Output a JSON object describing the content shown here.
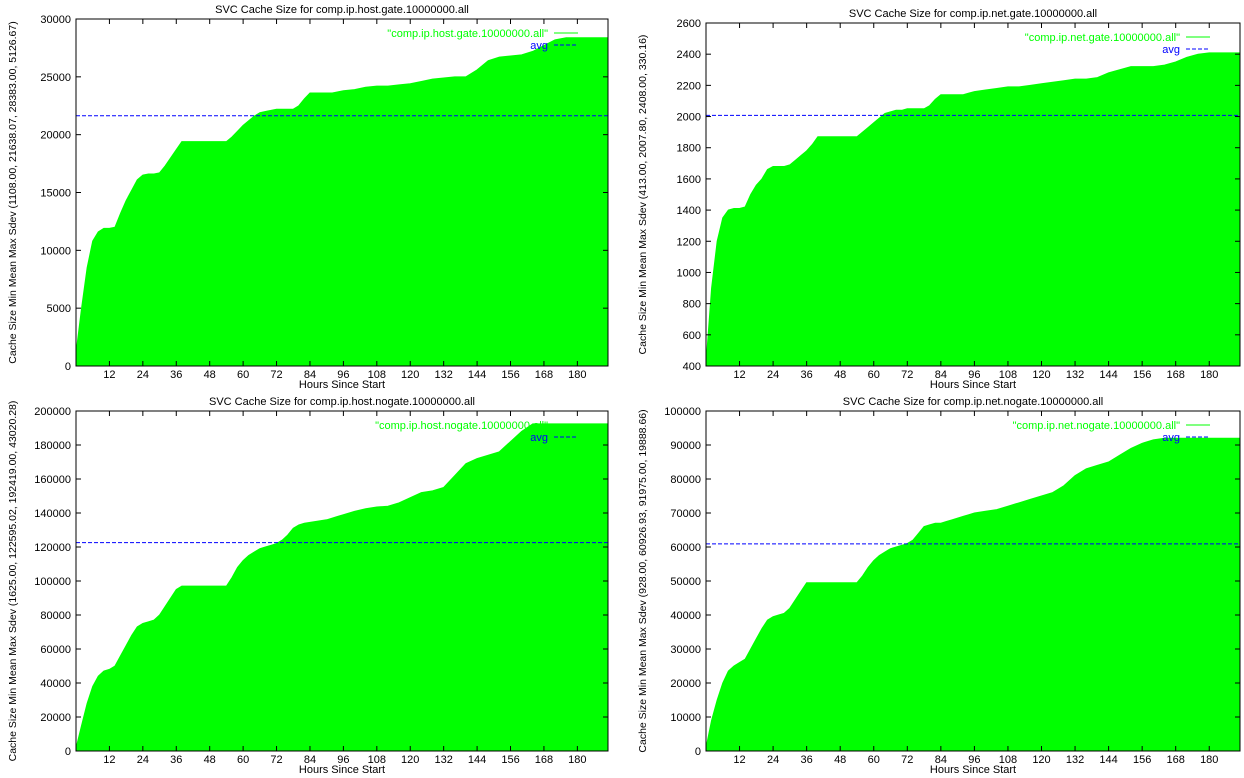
{
  "chart_data": [
    {
      "type": "area",
      "title": "SVC Cache Size for comp.ip.host.gate.10000000.all",
      "xlabel": "Hours Since Start",
      "ylabel": "Cache Size Min Mean Max Sdev (1108.00, 21638.07, 28383.00, 5126.67)",
      "xlim": [
        0,
        191
      ],
      "ylim": [
        0,
        30000
      ],
      "xticks": [
        12,
        24,
        36,
        48,
        60,
        72,
        84,
        96,
        108,
        120,
        132,
        144,
        156,
        168,
        180
      ],
      "yticks": [
        0,
        5000,
        10000,
        15000,
        20000,
        25000,
        30000
      ],
      "legend_position": "top-right",
      "series": [
        {
          "name": "\"comp.ip.host.gate.10000000.all\"",
          "color": "#00ff00",
          "style": "filled",
          "x": [
            0,
            2,
            4,
            6,
            8,
            10,
            12,
            14,
            16,
            18,
            20,
            22,
            24,
            26,
            28,
            30,
            32,
            34,
            36,
            38,
            40,
            42,
            44,
            46,
            48,
            50,
            52,
            54,
            56,
            58,
            60,
            62,
            64,
            66,
            68,
            70,
            72,
            74,
            76,
            78,
            80,
            82,
            84,
            86,
            88,
            90,
            92,
            94,
            96,
            100,
            104,
            108,
            112,
            116,
            120,
            124,
            128,
            132,
            136,
            140,
            144,
            148,
            152,
            156,
            160,
            164,
            168,
            172,
            176,
            180,
            184,
            188,
            191
          ],
          "y": [
            1108,
            5000,
            8500,
            10800,
            11600,
            11900,
            11900,
            12000,
            13200,
            14300,
            15200,
            16100,
            16500,
            16600,
            16600,
            16700,
            17300,
            18000,
            18700,
            19400,
            19400,
            19400,
            19400,
            19400,
            19400,
            19400,
            19400,
            19400,
            19800,
            20300,
            20800,
            21200,
            21600,
            21900,
            22000,
            22100,
            22200,
            22200,
            22200,
            22200,
            22500,
            23100,
            23600,
            23600,
            23600,
            23600,
            23600,
            23700,
            23800,
            23900,
            24100,
            24200,
            24200,
            24300,
            24400,
            24600,
            24800,
            24900,
            25000,
            25000,
            25600,
            26400,
            26700,
            26800,
            26900,
            27200,
            27700,
            28200,
            28383,
            28383,
            28383,
            28383,
            28383
          ]
        },
        {
          "name": "avg",
          "color": "#0000ff",
          "style": "dashed",
          "value": 21638.07
        }
      ]
    },
    {
      "type": "area",
      "title": "SVC Cache Size for comp.ip.net.gate.10000000.all",
      "xlabel": "Hours Since Start",
      "ylabel": "Cache Size Min Mean Max Sdev (413.00, 2007.80, 2408.00, 330.16)",
      "xlim": [
        0,
        191
      ],
      "ylim": [
        400,
        2600
      ],
      "xticks": [
        12,
        24,
        36,
        48,
        60,
        72,
        84,
        96,
        108,
        120,
        132,
        144,
        156,
        168,
        180
      ],
      "yticks": [
        400,
        600,
        800,
        1000,
        1200,
        1400,
        1600,
        1800,
        2000,
        2200,
        2400,
        2600
      ],
      "legend_position": "top-right",
      "series": [
        {
          "name": "\"comp.ip.net.gate.10000000.all\"",
          "color": "#00ff00",
          "style": "filled",
          "x": [
            0,
            2,
            4,
            6,
            8,
            10,
            12,
            14,
            16,
            18,
            20,
            22,
            24,
            26,
            28,
            30,
            32,
            34,
            36,
            38,
            40,
            42,
            44,
            46,
            48,
            50,
            52,
            54,
            56,
            58,
            60,
            62,
            64,
            66,
            68,
            70,
            72,
            74,
            76,
            78,
            80,
            82,
            84,
            86,
            88,
            90,
            92,
            94,
            96,
            100,
            104,
            108,
            112,
            116,
            120,
            124,
            128,
            132,
            136,
            140,
            144,
            148,
            152,
            156,
            160,
            164,
            168,
            172,
            176,
            180,
            184,
            188,
            191
          ],
          "y": [
            413,
            900,
            1200,
            1350,
            1400,
            1410,
            1410,
            1420,
            1500,
            1560,
            1600,
            1660,
            1680,
            1680,
            1680,
            1690,
            1720,
            1750,
            1780,
            1820,
            1870,
            1870,
            1870,
            1870,
            1870,
            1870,
            1870,
            1870,
            1900,
            1930,
            1960,
            1990,
            2020,
            2030,
            2040,
            2040,
            2050,
            2050,
            2050,
            2050,
            2070,
            2110,
            2140,
            2140,
            2140,
            2140,
            2140,
            2150,
            2160,
            2170,
            2180,
            2190,
            2190,
            2200,
            2210,
            2220,
            2230,
            2240,
            2240,
            2250,
            2280,
            2300,
            2320,
            2320,
            2320,
            2330,
            2350,
            2380,
            2400,
            2408,
            2408,
            2408,
            2408
          ]
        },
        {
          "name": "avg",
          "color": "#0000ff",
          "style": "dashed",
          "value": 2007.8
        }
      ]
    },
    {
      "type": "area",
      "title": "SVC Cache Size for comp.ip.host.nogate.10000000.all",
      "xlabel": "Hours Since Start",
      "ylabel": "Cache Size Min Mean Max Sdev (1625.00, 122595.02, 192419.00, 43020.28)",
      "xlim": [
        0,
        191
      ],
      "ylim": [
        0,
        200000
      ],
      "xticks": [
        12,
        24,
        36,
        48,
        60,
        72,
        84,
        96,
        108,
        120,
        132,
        144,
        156,
        168,
        180
      ],
      "yticks": [
        0,
        20000,
        40000,
        60000,
        80000,
        100000,
        120000,
        140000,
        160000,
        180000,
        200000
      ],
      "legend_position": "top-right",
      "series": [
        {
          "name": "\"comp.ip.host.nogate.10000000.all\"",
          "color": "#00ff00",
          "style": "filled",
          "x": [
            0,
            2,
            4,
            6,
            8,
            10,
            12,
            14,
            16,
            18,
            20,
            22,
            24,
            26,
            28,
            30,
            32,
            34,
            36,
            38,
            40,
            42,
            44,
            46,
            48,
            50,
            52,
            54,
            56,
            58,
            60,
            62,
            64,
            66,
            68,
            70,
            72,
            74,
            76,
            78,
            80,
            82,
            84,
            86,
            88,
            90,
            92,
            94,
            96,
            100,
            104,
            108,
            112,
            116,
            120,
            124,
            128,
            132,
            136,
            140,
            144,
            148,
            152,
            156,
            160,
            164,
            168,
            172,
            176,
            180,
            184,
            188,
            191
          ],
          "y": [
            1625,
            15000,
            28000,
            38000,
            44000,
            47000,
            48000,
            50000,
            56000,
            62000,
            68000,
            73000,
            75000,
            76000,
            77000,
            80000,
            85000,
            90000,
            95000,
            97000,
            97000,
            97000,
            97000,
            97000,
            97000,
            97000,
            97000,
            97000,
            102000,
            108000,
            112000,
            115000,
            117000,
            119000,
            120000,
            121000,
            122000,
            124000,
            127000,
            131000,
            133000,
            134000,
            134500,
            135000,
            135500,
            136000,
            137000,
            138000,
            139000,
            141000,
            142500,
            143500,
            144000,
            146000,
            149000,
            152000,
            153000,
            155000,
            162000,
            169000,
            172000,
            174000,
            176000,
            182000,
            188000,
            192419,
            192419,
            192419,
            192419,
            192419,
            192419,
            192419,
            192419
          ]
        },
        {
          "name": "avg",
          "color": "#0000ff",
          "style": "dashed",
          "value": 122595.02
        }
      ]
    },
    {
      "type": "area",
      "title": "SVC Cache Size for comp.ip.net.nogate.10000000.all",
      "xlabel": "Hours Since Start",
      "ylabel": "Cache Size Min Mean Max Sdev (928.00, 60926.93, 91975.00, 19888.66)",
      "xlim": [
        0,
        191
      ],
      "ylim": [
        0,
        100000
      ],
      "xticks": [
        12,
        24,
        36,
        48,
        60,
        72,
        84,
        96,
        108,
        120,
        132,
        144,
        156,
        168,
        180
      ],
      "yticks": [
        0,
        10000,
        20000,
        30000,
        40000,
        50000,
        60000,
        70000,
        80000,
        90000,
        100000
      ],
      "legend_position": "top-right",
      "series": [
        {
          "name": "\"comp.ip.net.nogate.10000000.all\"",
          "color": "#00ff00",
          "style": "filled",
          "x": [
            0,
            2,
            4,
            6,
            8,
            10,
            12,
            14,
            16,
            18,
            20,
            22,
            24,
            26,
            28,
            30,
            32,
            34,
            36,
            38,
            40,
            42,
            44,
            46,
            48,
            50,
            52,
            54,
            56,
            58,
            60,
            62,
            64,
            66,
            68,
            70,
            72,
            74,
            76,
            78,
            80,
            82,
            84,
            86,
            88,
            90,
            92,
            94,
            96,
            100,
            104,
            108,
            112,
            116,
            120,
            124,
            128,
            132,
            136,
            140,
            144,
            148,
            152,
            156,
            160,
            164,
            168,
            172,
            176,
            180,
            184,
            188,
            191
          ],
          "y": [
            928,
            9000,
            15000,
            20000,
            23500,
            25000,
            26000,
            27000,
            30000,
            33000,
            36000,
            38500,
            39500,
            40000,
            40500,
            42000,
            44500,
            47000,
            49500,
            49500,
            49500,
            49500,
            49500,
            49500,
            49500,
            49500,
            49500,
            49500,
            51500,
            54000,
            56000,
            57500,
            58500,
            59500,
            60000,
            60500,
            61000,
            62000,
            64000,
            66000,
            66500,
            67000,
            67000,
            67500,
            68000,
            68500,
            69000,
            69500,
            70000,
            70500,
            71000,
            72000,
            73000,
            74000,
            75000,
            76000,
            78000,
            81000,
            83000,
            84000,
            85000,
            87000,
            89000,
            90500,
            91500,
            91975,
            91975,
            91975,
            91975,
            91975,
            91975,
            91975,
            91975
          ]
        },
        {
          "name": "avg",
          "color": "#0000ff",
          "style": "dashed",
          "value": 60926.93
        }
      ]
    }
  ]
}
